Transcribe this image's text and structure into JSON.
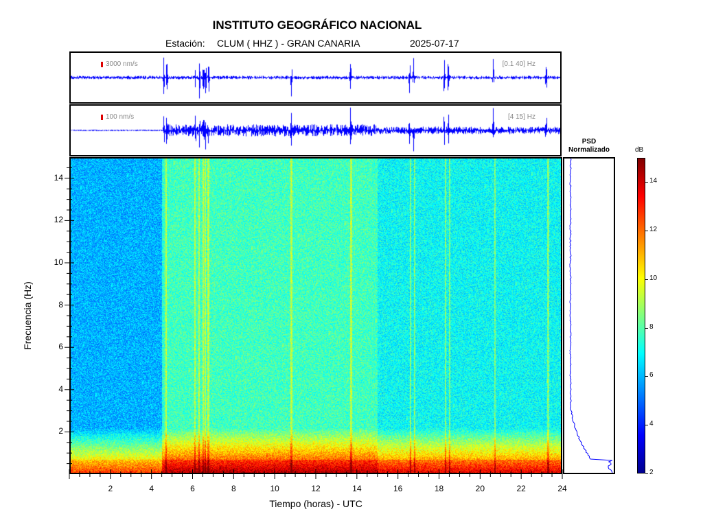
{
  "header": {
    "title": "INSTITUTO GEOGRÁFICO NACIONAL",
    "station_label": "Estación:",
    "station": "CLUM ( HHZ ) - GRAN CANARIA",
    "date": "2025-07-17"
  },
  "traces": [
    {
      "scale": "3000 nm/s",
      "band": "[0.1 40] Hz"
    },
    {
      "scale": "100 nm/s",
      "band": "[4 15] Hz"
    }
  ],
  "psd": {
    "title_line1": "PSD",
    "title_line2": "Normalizado"
  },
  "colorbar": {
    "unit": "dB",
    "range": [
      2,
      15
    ],
    "ticks": [
      "14",
      "12",
      "10",
      "8",
      "6",
      "4",
      "2"
    ],
    "colormap": "jet"
  },
  "chart_data": {
    "type": "heatmap",
    "title": "INSTITUTO GEOGRÁFICO NACIONAL",
    "xlabel": "Tiempo (horas) - UTC",
    "ylabel": "Frecuencia  (Hz)",
    "xlim": [
      0,
      24
    ],
    "ylim": [
      0,
      15
    ],
    "xticks": [
      "2",
      "4",
      "6",
      "8",
      "10",
      "12",
      "14",
      "16",
      "18",
      "20",
      "22",
      "24"
    ],
    "yticks": [
      "2",
      "4",
      "6",
      "8",
      "10",
      "12",
      "14"
    ],
    "noise_periods": [
      {
        "start_h": 0,
        "end_h": 4.6,
        "level": "low"
      },
      {
        "start_h": 4.6,
        "end_h": 15.0,
        "level": "high"
      },
      {
        "start_h": 15.0,
        "end_h": 24,
        "level": "medium"
      }
    ],
    "transient_events_h": [
      4.55,
      4.7,
      6.1,
      6.3,
      6.5,
      6.6,
      6.75,
      10.8,
      13.7,
      16.6,
      16.8,
      18.3,
      18.5,
      20.7,
      23.3
    ]
  }
}
